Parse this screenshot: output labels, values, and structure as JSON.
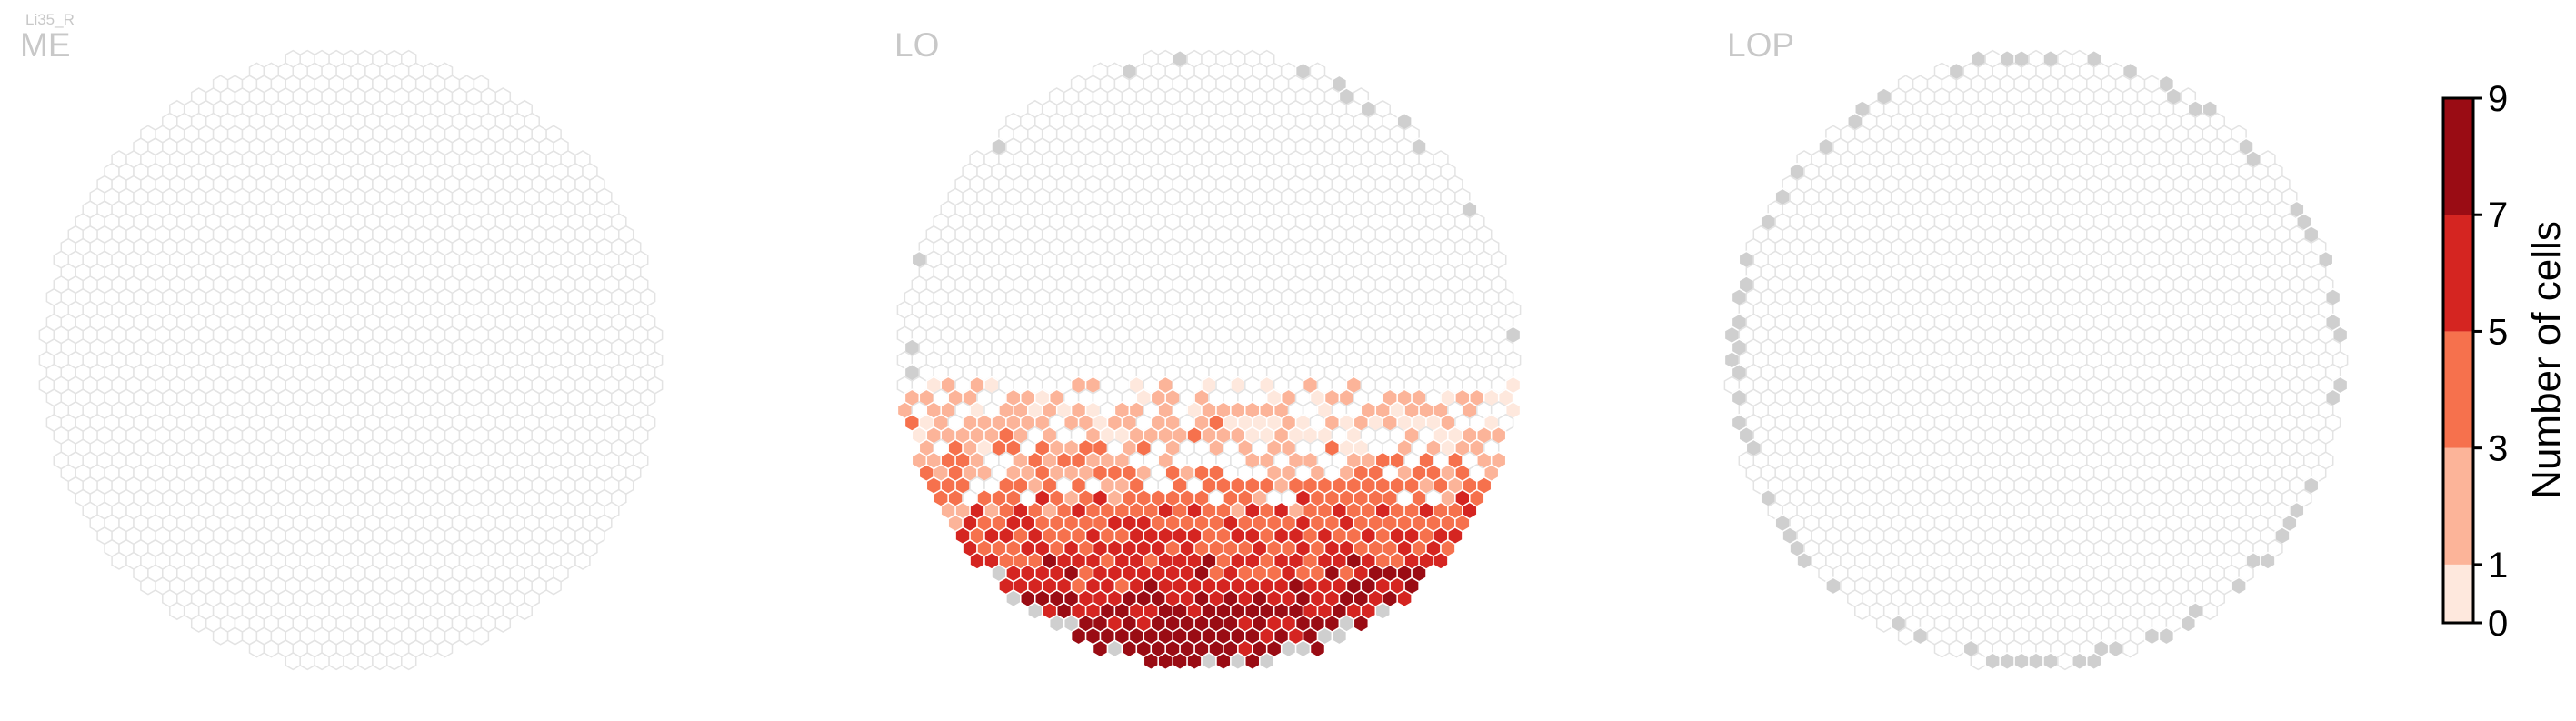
{
  "cell_type": "Li35_R",
  "chart_data": [
    {
      "type": "heatmap",
      "title": "ME",
      "description_visible": "hexagonal column map, all columns empty",
      "value_unit": "Number of cells",
      "populated_columns": []
    },
    {
      "type": "heatmap",
      "title": "LO",
      "value_unit": "Number of cells",
      "column_value_summary": {
        "0": "most columns (upper part of map)",
        "1-2": "scattered in middle band",
        "3-4": "lower-middle band",
        "5-6": "lower band",
        "7-9": "bottom-most rows"
      }
    },
    {
      "type": "heatmap",
      "title": "LOP",
      "value_unit": "Number of cells",
      "populated_columns": []
    }
  ],
  "colorbar": {
    "label": "Number of cells",
    "ticks": [
      "0",
      "1",
      "3",
      "5",
      "7",
      "9"
    ],
    "bins": [
      {
        "min": 0,
        "max": 1,
        "color": "#fee8dd"
      },
      {
        "min": 1,
        "max": 3,
        "color": "#fcb499"
      },
      {
        "min": 3,
        "max": 5,
        "color": "#f6714d"
      },
      {
        "min": 5,
        "max": 7,
        "color": "#d52521"
      },
      {
        "min": 7,
        "max": 9,
        "color": "#9a0c14"
      }
    ]
  },
  "colors": {
    "empty_column_outline": "#e3e3e3",
    "edge_column_fill": "#cfcfcf"
  }
}
